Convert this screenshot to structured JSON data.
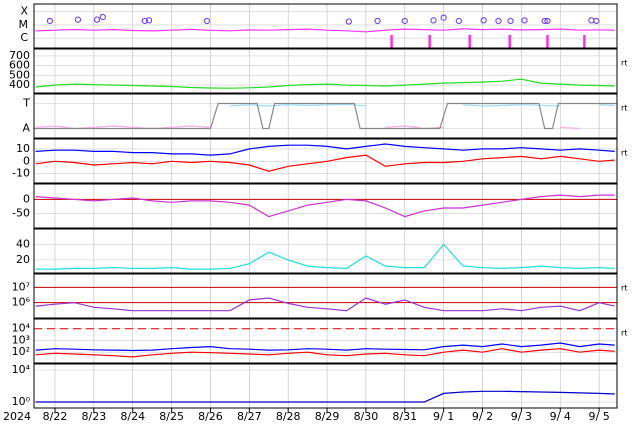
{
  "chart_data": [
    {
      "type": "line",
      "log": true,
      "ylim": [
        1.8e-07,
        0.00038
      ],
      "yticks": [
        {
          "value": 0.0001,
          "label": "X"
        },
        {
          "value": 1e-05,
          "label": "M"
        },
        {
          "value": 1e-06,
          "label": "C"
        }
      ],
      "x": [
        0.5,
        1,
        1.5,
        2,
        2.5,
        3,
        3.5,
        4,
        4.5,
        5,
        5.5,
        6,
        6.5,
        7,
        7.5,
        8,
        8.5,
        9,
        9.5,
        10,
        10.5,
        11,
        11.5,
        12,
        12.5,
        13,
        13.5,
        14,
        14.5,
        15,
        15.4
      ],
      "series": [
        {
          "color": "#ff33ff",
          "values": [
            3.5e-06,
            4e-06,
            4.5e-06,
            4e-06,
            4.4e-06,
            3.8e-06,
            3.5e-06,
            4e-06,
            4.6e-06,
            3.9e-06,
            3.6e-06,
            4.2e-06,
            4e-06,
            4.4e-06,
            4.8e-06,
            4e-06,
            3.6e-06,
            3e-06,
            4e-06,
            4.8e-06,
            4.4e-06,
            4e-06,
            5e-06,
            4.4e-06,
            4.8e-06,
            4.2e-06,
            4.4e-06,
            4.8e-06,
            4e-06,
            4.3e-06,
            3.9e-06
          ]
        },
        {
          "mode": "markers",
          "color": "#6633ff",
          "x": [
            0.87,
            1.59,
            2.08,
            2.23,
            3.31,
            3.42,
            4.91,
            8.56,
            9.3,
            10.0,
            10.74,
            11.0,
            11.39,
            12.03,
            12.41,
            12.72,
            13.08,
            13.6,
            13.67,
            14.8,
            14.93
          ],
          "values": [
            2e-05,
            2.5e-05,
            2.5e-05,
            4e-05,
            2e-05,
            2.2e-05,
            2e-05,
            1.8e-05,
            2e-05,
            2e-05,
            2.2e-05,
            3.5e-05,
            2e-05,
            2.2e-05,
            2e-05,
            2e-05,
            2.2e-05,
            2e-05,
            2e-05,
            2.2e-05,
            2e-05
          ]
        }
      ],
      "events": {
        "color": "#ff33dd",
        "x": [
          9.66,
          10.64,
          11.67,
          12.7,
          13.67,
          14.62
        ]
      }
    },
    {
      "type": "line",
      "log": false,
      "ylim": [
        318,
        772
      ],
      "yticks": [
        400,
        500,
        600,
        700
      ],
      "side_label": "rt",
      "x": [
        0.5,
        1,
        1.5,
        2,
        2.5,
        3,
        3.5,
        4,
        4.5,
        5,
        5.5,
        6,
        6.5,
        7,
        7.5,
        8,
        8.5,
        9,
        9.5,
        10,
        10.5,
        11,
        11.5,
        12,
        12.5,
        13,
        13.5,
        14,
        14.5,
        15,
        15.4
      ],
      "series": [
        {
          "color": "#22dd22",
          "values": [
            380,
            400,
            410,
            405,
            400,
            395,
            390,
            385,
            375,
            370,
            368,
            372,
            380,
            395,
            405,
            410,
            400,
            395,
            390,
            400,
            410,
            420,
            425,
            430,
            440,
            460,
            420,
            410,
            400,
            395,
            390
          ]
        }
      ]
    },
    {
      "type": "line",
      "log": false,
      "ylim": [
        -0.38,
        1.38
      ],
      "yticks": [
        {
          "value": 1,
          "label": "T"
        },
        {
          "value": 0,
          "label": "A"
        }
      ],
      "side_label": "rt",
      "x": [
        0.5,
        1,
        1.5,
        2,
        2.5,
        3,
        3.5,
        4,
        4.5,
        5,
        5.5,
        6,
        6.5,
        7,
        7.5,
        8,
        8.5,
        9,
        9.5,
        10,
        10.5,
        11,
        11.5,
        12,
        12.5,
        13,
        13.5,
        14,
        14.5,
        15,
        15.4
      ],
      "series": [
        {
          "color": "#99ddff",
          "values": [
            0.9,
            null,
            0.95,
            null,
            null,
            null,
            null,
            null,
            null,
            null,
            0.9,
            0.95,
            0.9,
            0.95,
            0.92,
            0.95,
            0.97,
            0.9,
            null,
            null,
            null,
            null,
            0.95,
            0.9,
            0.92,
            0.95,
            0.93,
            0.9,
            null,
            0.95,
            0.92
          ]
        },
        {
          "color": "#ffaaee",
          "values": [
            0.05,
            0.1,
            0.0,
            0.05,
            0.1,
            0.05,
            0.0,
            0.05,
            0.1,
            0.05,
            null,
            null,
            0.05,
            null,
            null,
            null,
            null,
            null,
            0.05,
            0.1,
            0.0,
            0.05,
            null,
            null,
            null,
            null,
            null,
            0.05,
            0.0,
            null,
            null
          ]
        },
        {
          "color": "#888888",
          "x": [
            0.46,
            5.0,
            5.2,
            6.2,
            6.35,
            6.5,
            6.65,
            8.7,
            8.85,
            10.9,
            11.1,
            13.45,
            13.6,
            13.8,
            13.95,
            15.46
          ],
          "values": [
            0,
            0,
            1,
            1,
            0,
            0,
            1,
            1,
            0,
            0,
            1,
            1,
            0,
            0,
            1,
            1
          ]
        }
      ]
    },
    {
      "type": "line",
      "log": false,
      "ylim": [
        -17.5,
        18
      ],
      "yticks": [
        10,
        0,
        -10
      ],
      "side_label": "rt",
      "x": [
        0.5,
        1,
        1.5,
        2,
        2.5,
        3,
        3.5,
        4,
        4.5,
        5,
        5.5,
        6,
        6.5,
        7,
        7.5,
        8,
        8.5,
        9,
        9.5,
        10,
        10.5,
        11,
        11.5,
        12,
        12.5,
        13,
        13.5,
        14,
        14.5,
        15,
        15.4
      ],
      "series": [
        {
          "color": "#0000ff",
          "values": [
            8,
            9,
            9,
            8,
            8,
            7,
            7,
            6,
            6,
            5,
            6,
            10,
            12,
            13,
            13,
            12,
            10,
            12,
            14,
            12,
            11,
            10,
            9,
            10,
            10,
            11,
            10,
            9,
            10,
            9,
            8
          ]
        },
        {
          "color": "#ff0000",
          "values": [
            -2,
            0,
            -1,
            -3,
            -2,
            -1,
            -2,
            0,
            -1,
            0,
            -1,
            -3,
            -8,
            -4,
            -2,
            0,
            3,
            5,
            -4,
            -2,
            -1,
            -1,
            0,
            2,
            3,
            4,
            2,
            4,
            2,
            0,
            1
          ]
        }
      ]
    },
    {
      "type": "line",
      "log": false,
      "ylim": [
        -100,
        54
      ],
      "yticks": [
        0,
        -50
      ],
      "hlines": [
        {
          "value": 0,
          "color": "#cc0000"
        }
      ],
      "x": [
        0.5,
        1,
        1.5,
        2,
        2.5,
        3,
        3.5,
        4,
        4.5,
        5,
        5.5,
        6,
        6.5,
        7,
        7.5,
        8,
        8.5,
        9,
        9.5,
        10,
        10.5,
        11,
        11.5,
        12,
        12.5,
        13,
        13.5,
        14,
        14.5,
        15,
        15.4
      ],
      "series": [
        {
          "color": "#cc33cc",
          "values": [
            10,
            5,
            0,
            -5,
            0,
            5,
            -5,
            -10,
            -5,
            -5,
            -10,
            -20,
            -60,
            -40,
            -20,
            -10,
            0,
            -5,
            -30,
            -60,
            -40,
            -30,
            -30,
            -20,
            -10,
            0,
            10,
            15,
            10,
            15,
            15
          ]
        }
      ]
    },
    {
      "type": "line",
      "log": false,
      "ylim": [
        3,
        60
      ],
      "yticks": [
        40,
        20
      ],
      "x": [
        0.5,
        1,
        1.5,
        2,
        2.5,
        3,
        3.5,
        4,
        4.5,
        5,
        5.5,
        6,
        6.5,
        7,
        7.5,
        8,
        8.5,
        9,
        9.5,
        10,
        10.5,
        11,
        11.5,
        12,
        12.5,
        13,
        13.5,
        14,
        14.5,
        15,
        15.4
      ],
      "series": [
        {
          "color": "#22dddd",
          "values": [
            8,
            8,
            9,
            9,
            10,
            9,
            9,
            10,
            8,
            8,
            9,
            15,
            30,
            20,
            12,
            10,
            9,
            25,
            12,
            10,
            10,
            40,
            12,
            10,
            9,
            10,
            12,
            10,
            9,
            10,
            9
          ]
        }
      ]
    },
    {
      "type": "line",
      "log": true,
      "ylim": [
        100000,
        74000000
      ],
      "yticks": [
        {
          "value": 10000000,
          "label": "10⁷"
        },
        {
          "value": 1000000,
          "label": "10⁶"
        }
      ],
      "side_label": "rt",
      "hlines": [
        {
          "value": 10000000,
          "color": "#cc0000"
        },
        {
          "value": 1000000,
          "color": "#cc0000"
        }
      ],
      "x": [
        0.5,
        1,
        1.5,
        2,
        2.5,
        3,
        3.5,
        4,
        4.5,
        5,
        5.5,
        6,
        6.5,
        7,
        7.5,
        8,
        8.5,
        9,
        9.5,
        10,
        10.5,
        11,
        11.5,
        12,
        12.5,
        13,
        13.5,
        14,
        14.5,
        15,
        15.4
      ],
      "series": [
        {
          "color": "#9933cc",
          "values": [
            600000,
            800000,
            1000000,
            500000,
            400000,
            300000,
            300000,
            300000,
            300000,
            300000,
            300000,
            1500000,
            2000000,
            900000,
            500000,
            400000,
            300000,
            2000000,
            800000,
            1500000,
            500000,
            300000,
            300000,
            300000,
            400000,
            300000,
            500000,
            600000,
            300000,
            1000000,
            600000
          ]
        }
      ]
    },
    {
      "type": "line",
      "log": true,
      "ylim": [
        12,
        67000
      ],
      "yticks": [
        {
          "value": 10000,
          "label": "10⁴"
        },
        {
          "value": 1000,
          "label": "10³"
        },
        {
          "value": 100,
          "label": "10²"
        }
      ],
      "side_label": "rt",
      "hlines": [
        {
          "value": 10000,
          "color": "#dd0000",
          "dashed": true
        }
      ],
      "x": [
        0.5,
        1,
        1.5,
        2,
        2.5,
        3,
        3.5,
        4,
        4.5,
        5,
        5.5,
        6,
        6.5,
        7,
        7.5,
        8,
        8.5,
        9,
        9.5,
        10,
        10.5,
        11,
        11.5,
        12,
        12.5,
        13,
        13.5,
        14,
        14.5,
        15,
        15.4
      ],
      "series": [
        {
          "color": "#0000ff",
          "values": [
            150,
            200,
            180,
            160,
            150,
            140,
            150,
            200,
            250,
            300,
            200,
            180,
            150,
            160,
            200,
            180,
            150,
            200,
            180,
            170,
            160,
            300,
            400,
            300,
            500,
            300,
            400,
            600,
            300,
            500,
            400
          ]
        },
        {
          "color": "#ff0000",
          "values": [
            60,
            80,
            70,
            60,
            50,
            40,
            60,
            80,
            100,
            90,
            80,
            70,
            60,
            80,
            100,
            60,
            50,
            70,
            80,
            60,
            50,
            100,
            150,
            100,
            200,
            100,
            150,
            200,
            100,
            150,
            120
          ]
        }
      ]
    },
    {
      "type": "line",
      "log": true,
      "ylim": [
        0.18,
        56000
      ],
      "yticks": [
        {
          "value": 10000,
          "label": "10⁴"
        },
        {
          "value": 1,
          "label": "10⁰"
        }
      ],
      "year": "2024",
      "xlim": [
        0.46,
        15.46
      ],
      "xticks": [
        {
          "value": 1,
          "label": "8/22"
        },
        {
          "value": 2,
          "label": "8/23"
        },
        {
          "value": 3,
          "label": "8/24"
        },
        {
          "value": 4,
          "label": "8/25"
        },
        {
          "value": 5,
          "label": "8/26"
        },
        {
          "value": 6,
          "label": "8/27"
        },
        {
          "value": 7,
          "label": "8/28"
        },
        {
          "value": 8,
          "label": "8/29"
        },
        {
          "value": 9,
          "label": "8/30"
        },
        {
          "value": 10,
          "label": "8/31"
        },
        {
          "value": 11,
          "label": "9/ 1"
        },
        {
          "value": 12,
          "label": "9/ 2"
        },
        {
          "value": 13,
          "label": "9/ 3"
        },
        {
          "value": 14,
          "label": "9/ 4"
        },
        {
          "value": 15,
          "label": "9/ 5"
        }
      ],
      "x": [
        0.5,
        1,
        1.5,
        2,
        2.5,
        3,
        3.5,
        4,
        4.5,
        5,
        5.5,
        6,
        6.5,
        7,
        7.5,
        8,
        8.5,
        9,
        9.5,
        10,
        10.5,
        11,
        11.5,
        12,
        12.5,
        13,
        13.5,
        14,
        14.5,
        15,
        15.4
      ],
      "series": [
        {
          "color": "#0000cc",
          "values": [
            1,
            1,
            1,
            1,
            1,
            1,
            1,
            1,
            1,
            1,
            1,
            1,
            1,
            1,
            1,
            1,
            1,
            1,
            1,
            1,
            1,
            12,
            18,
            22,
            22,
            20,
            18,
            16,
            14,
            12,
            10
          ]
        }
      ]
    }
  ]
}
